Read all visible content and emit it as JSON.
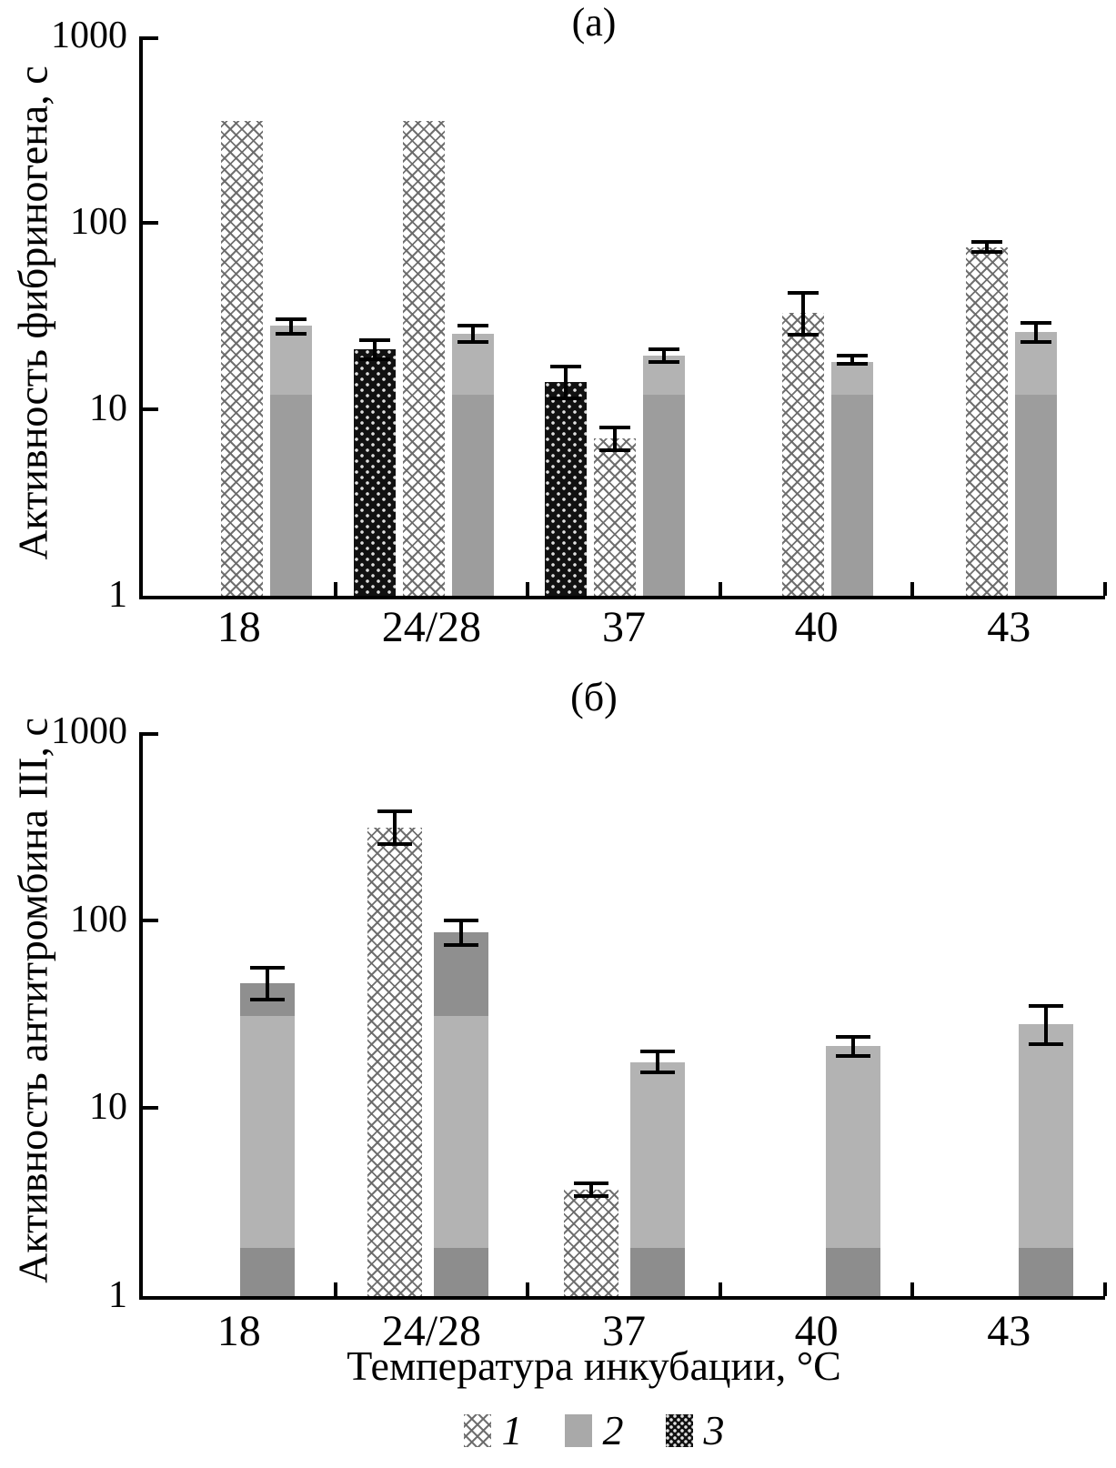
{
  "chart_data": [
    {
      "type": "bar",
      "id": "a",
      "title": "(а)",
      "ylabel": "Активность фибриногена, с",
      "xlabel": "",
      "yscale": "log",
      "ylim": [
        1,
        1000
      ],
      "yticks": [
        "1000",
        "100",
        "10",
        "1"
      ],
      "grid": false,
      "categories": [
        "18",
        "24/28",
        "37",
        "40",
        "43"
      ],
      "bars": [
        {
          "group": 0,
          "series": "1",
          "value": 350,
          "err": null
        },
        {
          "group": 0,
          "series": "2",
          "value": 28,
          "err": [
            25.5,
            30.5
          ]
        },
        {
          "group": 1,
          "series": "3",
          "value": 21,
          "err": [
            18.5,
            23.5
          ]
        },
        {
          "group": 1,
          "series": "1",
          "value": 350,
          "err": null
        },
        {
          "group": 1,
          "series": "2",
          "value": 25.5,
          "err": [
            23,
            28
          ]
        },
        {
          "group": 2,
          "series": "3",
          "value": 14,
          "err": [
            11.5,
            17
          ]
        },
        {
          "group": 2,
          "series": "1",
          "value": 7,
          "err": [
            6,
            8
          ]
        },
        {
          "group": 2,
          "series": "2",
          "value": 19.5,
          "err": [
            18,
            21
          ]
        },
        {
          "group": 3,
          "series": "1",
          "value": 33,
          "err": [
            25,
            42
          ]
        },
        {
          "group": 3,
          "series": "2",
          "value": 18,
          "err": [
            17.5,
            19.5
          ]
        },
        {
          "group": 4,
          "series": "1",
          "value": 74,
          "err": [
            70,
            79
          ]
        },
        {
          "group": 4,
          "series": "2",
          "value": 26,
          "err": [
            23,
            29
          ]
        }
      ],
      "gray_bands": [
        {
          "upto": 12,
          "color": "#9d9d9d"
        },
        {
          "upto": 1000,
          "color": "#b3b3b3"
        }
      ]
    },
    {
      "type": "bar",
      "id": "b",
      "title": "(б)",
      "ylabel": "Активность антитромбина III, с",
      "xlabel": "Температура инкубации, °C",
      "yscale": "log",
      "ylim": [
        1,
        1000
      ],
      "yticks": [
        "1000",
        "100",
        "10",
        "1"
      ],
      "grid": false,
      "categories": [
        "18",
        "24/28",
        "37",
        "40",
        "43"
      ],
      "bars": [
        {
          "group": 0,
          "series": "2",
          "value": 46,
          "err": [
            38,
            56
          ]
        },
        {
          "group": 1,
          "series": "1",
          "value": 310,
          "err": [
            255,
            380
          ]
        },
        {
          "group": 1,
          "series": "2",
          "value": 86,
          "err": [
            74,
            100
          ]
        },
        {
          "group": 2,
          "series": "1",
          "value": 3.7,
          "err": [
            3.4,
            4.0
          ]
        },
        {
          "group": 2,
          "series": "2",
          "value": 17.5,
          "err": [
            15.5,
            20
          ]
        },
        {
          "group": 3,
          "series": "2",
          "value": 21.5,
          "err": [
            19,
            24
          ]
        },
        {
          "group": 4,
          "series": "2",
          "value": 28,
          "err": [
            22,
            35
          ]
        }
      ],
      "gray_bands": [
        {
          "upto": 1.8,
          "color": "#8d8d8d"
        },
        {
          "upto": 31,
          "color": "#b3b3b3"
        },
        {
          "upto": 1000,
          "color": "#8f8f8f"
        }
      ]
    }
  ],
  "legend": {
    "items": [
      {
        "label": "1",
        "pattern": "crosshatch"
      },
      {
        "label": "2",
        "pattern": "solid-gray"
      },
      {
        "label": "3",
        "pattern": "black-dotted"
      }
    ]
  },
  "colors": {
    "axis": "#000000",
    "gray_bar_light": "#b3b3b3",
    "gray_bar_dark": "#8f8f8f",
    "crosshatch_line": "#696969",
    "dot_bar_bg": "#111111"
  }
}
